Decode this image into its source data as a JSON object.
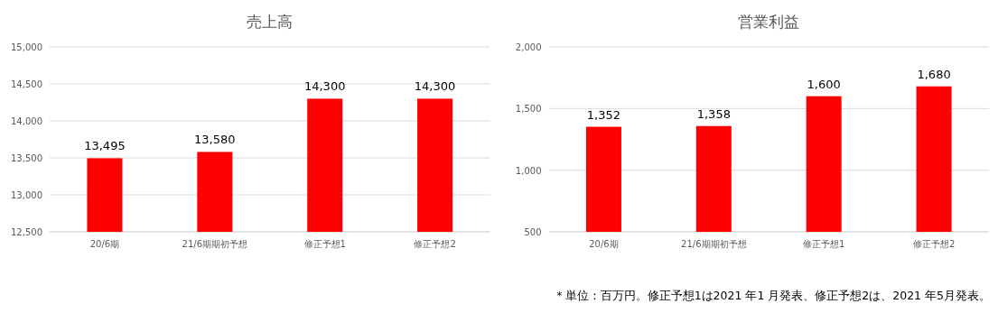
{
  "chart_data": [
    {
      "type": "bar",
      "title": "売上高",
      "categories": [
        "20/6期",
        "21/6期期初予想",
        "修正予想1",
        "修正予想2"
      ],
      "values": [
        13495,
        13580,
        14300,
        14300
      ],
      "color": "#ff0000",
      "value_labels": [
        "13,495",
        "13,580",
        "14,300",
        "14,300"
      ],
      "ylim": [
        12500,
        15000
      ],
      "yticks": [
        {
          "value": 12500,
          "label": "12,500"
        },
        {
          "value": 13000,
          "label": "13,000"
        },
        {
          "value": 13500,
          "label": "13,500"
        },
        {
          "value": 14000,
          "label": "14,000"
        },
        {
          "value": 14500,
          "label": "14,500"
        },
        {
          "value": 15000,
          "label": "15,000"
        }
      ],
      "grid": "y"
    },
    {
      "type": "bar",
      "title": "営業利益",
      "categories": [
        "20/6期",
        "21/6期期初予想",
        "修正予想1",
        "修正予想2"
      ],
      "values": [
        1352,
        1358,
        1600,
        1680
      ],
      "color": "#ff0000",
      "value_labels": [
        "1,352",
        "1,358",
        "1,600",
        "1,680"
      ],
      "ylim": [
        500,
        2000
      ],
      "yticks": [
        {
          "value": 500,
          "label": "500"
        },
        {
          "value": 1000,
          "label": "1,000"
        },
        {
          "value": 1500,
          "label": "1,500"
        },
        {
          "value": 2000,
          "label": "2,000"
        }
      ],
      "grid": "y",
      "annotations": [
        "＊単位：百万円。修正予想1は2021 年1 月発表、修正予想2は、2021 年5月発表。"
      ]
    }
  ]
}
